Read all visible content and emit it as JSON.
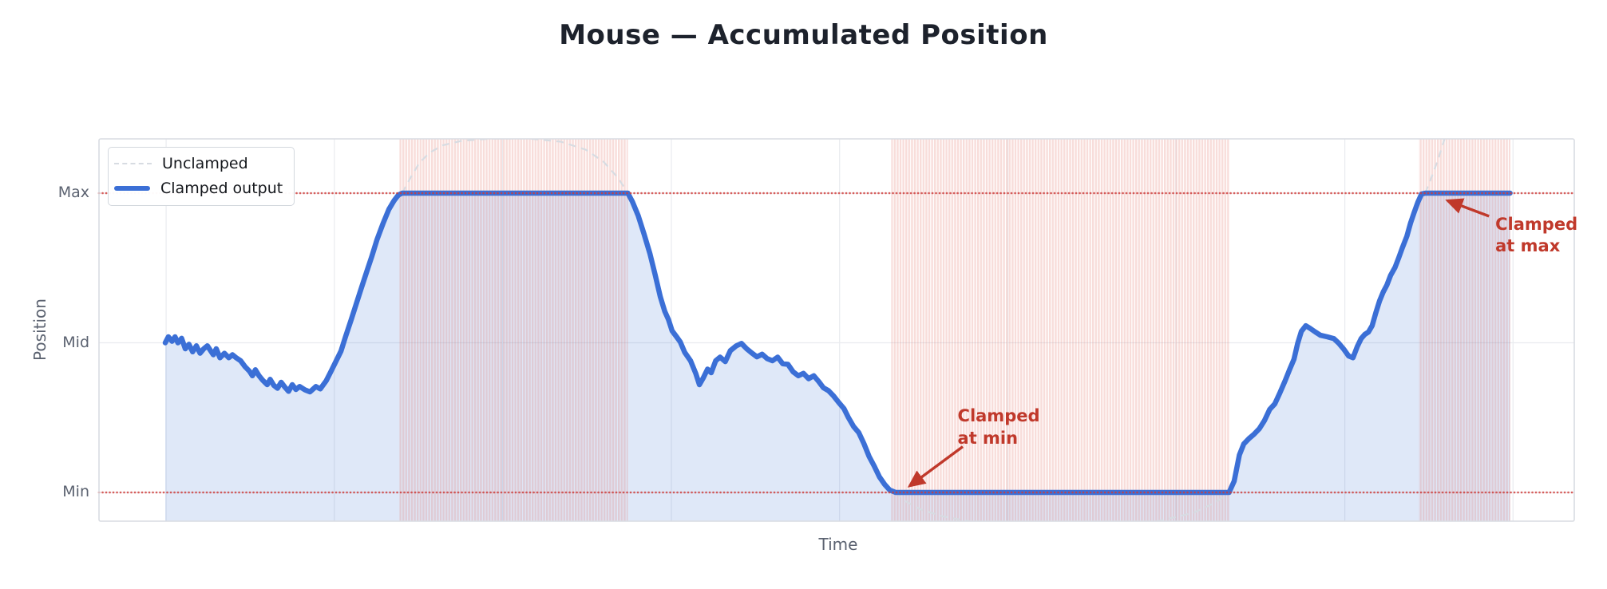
{
  "colors": {
    "title_text": "#1d222c",
    "axis_text": "#5b6270",
    "legend_text": "#14171c",
    "annotation": "#c0392b",
    "clamped_line": "#3b6fd6",
    "clamped_fill": "rgba(59,111,214,0.16)",
    "unclamped_line": "#d7dce2",
    "clamp_band": "rgba(224,98,88,0.22)",
    "clamp_guide": "#d03a37",
    "grid": "#e9ebef",
    "frame": "#d9dce2"
  },
  "chart_data": {
    "type": "line",
    "title": "Mouse — Accumulated Position",
    "xlabel": "Time",
    "ylabel": "Position",
    "grid": true,
    "legend_position": "upper-left",
    "x_range": [
      0,
      100
    ],
    "y_view": [
      -0.096,
      1.181
    ],
    "y_ticks": [
      {
        "label": "Max",
        "value": 1
      },
      {
        "label": "Mid",
        "value": 0.5
      },
      {
        "label": "Min",
        "value": 0
      }
    ],
    "x_gridlines": [
      4.55,
      15.95,
      27.35,
      38.8,
      50.2,
      61.6,
      73.0,
      84.45,
      95.85
    ],
    "clamp_lines": [
      {
        "label": "Max",
        "y": 1
      },
      {
        "label": "Min",
        "y": 0
      }
    ],
    "clamp_regions": [
      {
        "type": "max",
        "x": [
          20.35,
          35.85
        ]
      },
      {
        "type": "min",
        "x": [
          53.7,
          76.6
        ]
      },
      {
        "type": "max",
        "x": [
          89.45,
          95.67
        ]
      }
    ],
    "series": [
      {
        "name": "Unclamped",
        "style": "dashed",
        "segments": [
          [
            [
              20.55,
              1.0
            ],
            [
              21.1,
              1.05
            ],
            [
              21.7,
              1.1
            ],
            [
              22.4,
              1.135
            ],
            [
              23.3,
              1.16
            ],
            [
              24.6,
              1.175
            ],
            [
              26.5,
              1.182
            ],
            [
              29.0,
              1.183
            ],
            [
              31.3,
              1.172
            ],
            [
              33.0,
              1.145
            ],
            [
              34.2,
              1.105
            ],
            [
              35.2,
              1.05
            ],
            [
              35.85,
              1.0
            ]
          ],
          [
            [
              54.0,
              0.0
            ],
            [
              54.7,
              -0.03
            ],
            [
              55.7,
              -0.057
            ],
            [
              57.2,
              -0.08
            ],
            [
              59.2,
              -0.098
            ],
            [
              62.0,
              -0.112
            ],
            [
              65.3,
              -0.118
            ],
            [
              68.8,
              -0.112
            ],
            [
              71.8,
              -0.096
            ],
            [
              74.2,
              -0.068
            ],
            [
              75.7,
              -0.033
            ],
            [
              76.6,
              0.0
            ]
          ],
          [
            [
              89.9,
              1.0
            ],
            [
              90.3,
              1.05
            ],
            [
              90.75,
              1.11
            ],
            [
              91.2,
              1.18
            ],
            [
              91.7,
              1.27
            ],
            [
              92.3,
              1.4
            ],
            [
              93.2,
              1.6
            ]
          ]
        ]
      },
      {
        "name": "Clamped output",
        "style": "solid",
        "points": [
          [
            4.49,
            0.5
          ],
          [
            4.7,
            0.52
          ],
          [
            4.95,
            0.505
          ],
          [
            5.15,
            0.52
          ],
          [
            5.35,
            0.5
          ],
          [
            5.6,
            0.515
          ],
          [
            5.85,
            0.48
          ],
          [
            6.1,
            0.495
          ],
          [
            6.35,
            0.47
          ],
          [
            6.6,
            0.49
          ],
          [
            6.85,
            0.465
          ],
          [
            7.1,
            0.48
          ],
          [
            7.35,
            0.49
          ],
          [
            7.55,
            0.475
          ],
          [
            7.75,
            0.46
          ],
          [
            7.95,
            0.48
          ],
          [
            8.2,
            0.45
          ],
          [
            8.5,
            0.465
          ],
          [
            8.8,
            0.45
          ],
          [
            9.05,
            0.46
          ],
          [
            9.3,
            0.45
          ],
          [
            9.6,
            0.44
          ],
          [
            9.9,
            0.42
          ],
          [
            10.2,
            0.405
          ],
          [
            10.4,
            0.39
          ],
          [
            10.6,
            0.41
          ],
          [
            10.85,
            0.39
          ],
          [
            11.1,
            0.375
          ],
          [
            11.4,
            0.36
          ],
          [
            11.6,
            0.378
          ],
          [
            11.85,
            0.358
          ],
          [
            12.1,
            0.348
          ],
          [
            12.35,
            0.368
          ],
          [
            12.6,
            0.352
          ],
          [
            12.85,
            0.338
          ],
          [
            13.1,
            0.36
          ],
          [
            13.35,
            0.344
          ],
          [
            13.6,
            0.354
          ],
          [
            13.95,
            0.343
          ],
          [
            14.3,
            0.336
          ],
          [
            14.7,
            0.354
          ],
          [
            15.0,
            0.346
          ],
          [
            15.4,
            0.373
          ],
          [
            15.7,
            0.402
          ],
          [
            16.0,
            0.432
          ],
          [
            16.4,
            0.472
          ],
          [
            16.72,
            0.522
          ],
          [
            17.1,
            0.578
          ],
          [
            17.45,
            0.632
          ],
          [
            17.8,
            0.685
          ],
          [
            18.15,
            0.738
          ],
          [
            18.5,
            0.79
          ],
          [
            18.85,
            0.845
          ],
          [
            19.25,
            0.898
          ],
          [
            19.65,
            0.946
          ],
          [
            20.0,
            0.975
          ],
          [
            20.3,
            0.994
          ],
          [
            20.55,
            1.0
          ],
          [
            35.85,
            1.0
          ],
          [
            36.15,
            0.972
          ],
          [
            36.55,
            0.925
          ],
          [
            36.95,
            0.863
          ],
          [
            37.35,
            0.797
          ],
          [
            37.7,
            0.727
          ],
          [
            38.05,
            0.653
          ],
          [
            38.35,
            0.605
          ],
          [
            38.6,
            0.578
          ],
          [
            38.85,
            0.54
          ],
          [
            39.15,
            0.52
          ],
          [
            39.4,
            0.503
          ],
          [
            39.7,
            0.468
          ],
          [
            40.1,
            0.44
          ],
          [
            40.45,
            0.398
          ],
          [
            40.7,
            0.36
          ],
          [
            40.95,
            0.382
          ],
          [
            41.25,
            0.412
          ],
          [
            41.5,
            0.4
          ],
          [
            41.8,
            0.44
          ],
          [
            42.1,
            0.452
          ],
          [
            42.45,
            0.437
          ],
          [
            42.8,
            0.474
          ],
          [
            43.2,
            0.49
          ],
          [
            43.55,
            0.498
          ],
          [
            43.9,
            0.48
          ],
          [
            44.25,
            0.466
          ],
          [
            44.6,
            0.453
          ],
          [
            44.95,
            0.462
          ],
          [
            45.3,
            0.447
          ],
          [
            45.65,
            0.44
          ],
          [
            46.0,
            0.452
          ],
          [
            46.35,
            0.43
          ],
          [
            46.7,
            0.428
          ],
          [
            47.05,
            0.403
          ],
          [
            47.4,
            0.39
          ],
          [
            47.75,
            0.398
          ],
          [
            48.1,
            0.38
          ],
          [
            48.45,
            0.39
          ],
          [
            48.8,
            0.37
          ],
          [
            49.1,
            0.35
          ],
          [
            49.45,
            0.34
          ],
          [
            49.8,
            0.322
          ],
          [
            50.15,
            0.3
          ],
          [
            50.5,
            0.28
          ],
          [
            50.8,
            0.25
          ],
          [
            51.15,
            0.22
          ],
          [
            51.5,
            0.2
          ],
          [
            51.85,
            0.163
          ],
          [
            52.2,
            0.12
          ],
          [
            52.55,
            0.088
          ],
          [
            52.9,
            0.052
          ],
          [
            53.25,
            0.027
          ],
          [
            53.6,
            0.008
          ],
          [
            54.0,
            0.0
          ],
          [
            76.6,
            0.0
          ],
          [
            76.95,
            0.038
          ],
          [
            77.3,
            0.125
          ],
          [
            77.6,
            0.162
          ],
          [
            77.95,
            0.18
          ],
          [
            78.3,
            0.195
          ],
          [
            78.65,
            0.213
          ],
          [
            79.0,
            0.24
          ],
          [
            79.35,
            0.277
          ],
          [
            79.7,
            0.296
          ],
          [
            80.05,
            0.333
          ],
          [
            80.4,
            0.373
          ],
          [
            80.7,
            0.41
          ],
          [
            81.0,
            0.445
          ],
          [
            81.25,
            0.498
          ],
          [
            81.5,
            0.538
          ],
          [
            81.8,
            0.557
          ],
          [
            82.1,
            0.548
          ],
          [
            82.45,
            0.536
          ],
          [
            82.8,
            0.525
          ],
          [
            83.25,
            0.52
          ],
          [
            83.7,
            0.514
          ],
          [
            84.05,
            0.498
          ],
          [
            84.4,
            0.477
          ],
          [
            84.7,
            0.456
          ],
          [
            85.0,
            0.45
          ],
          [
            85.3,
            0.488
          ],
          [
            85.55,
            0.514
          ],
          [
            85.8,
            0.528
          ],
          [
            86.05,
            0.536
          ],
          [
            86.3,
            0.557
          ],
          [
            86.55,
            0.6
          ],
          [
            86.8,
            0.64
          ],
          [
            87.05,
            0.67
          ],
          [
            87.3,
            0.693
          ],
          [
            87.55,
            0.725
          ],
          [
            87.85,
            0.752
          ],
          [
            88.1,
            0.784
          ],
          [
            88.35,
            0.818
          ],
          [
            88.65,
            0.856
          ],
          [
            88.9,
            0.9
          ],
          [
            89.15,
            0.936
          ],
          [
            89.4,
            0.97
          ],
          [
            89.65,
            0.997
          ],
          [
            89.9,
            1.0
          ],
          [
            95.65,
            1.0
          ]
        ]
      }
    ],
    "annotations": [
      {
        "text": "Clamped\nat min",
        "text_xy": [
          58.2,
          0.29
        ],
        "arrow_from": [
          58.55,
          0.153
        ],
        "arrow_to": [
          54.95,
          0.022
        ]
      },
      {
        "text": "Clamped\nat max",
        "text_xy": [
          94.65,
          0.932
        ],
        "arrow_from": [
          94.22,
          0.923
        ],
        "arrow_to": [
          91.42,
          0.975
        ]
      }
    ]
  }
}
